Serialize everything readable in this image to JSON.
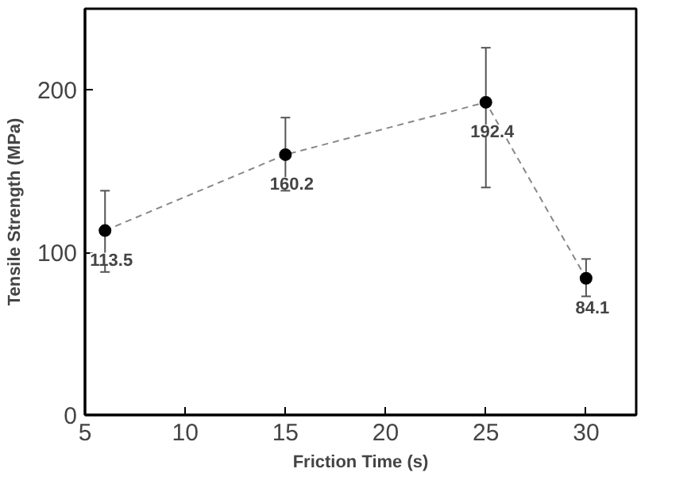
{
  "chart_data": {
    "type": "line",
    "xlabel": "Friction Time (s)",
    "ylabel": "Tensile Strength (MPa)",
    "x": [
      6,
      15,
      25,
      30
    ],
    "series": [
      {
        "color": "#000000",
        "values": [
          113.5,
          160.2,
          192.4,
          84.1
        ],
        "errors": [
          [
            88,
            138
          ],
          [
            138,
            183
          ],
          [
            140,
            226
          ],
          [
            73,
            96
          ]
        ]
      }
    ],
    "xlim": [
      5,
      32.5
    ],
    "xticks": [
      5,
      10,
      15,
      20,
      25,
      30
    ],
    "ylim": [
      0,
      250
    ],
    "yticks": [
      0,
      100,
      200
    ],
    "grid": false,
    "marker": "circle",
    "line_style": "dashed",
    "data_labels": true
  }
}
